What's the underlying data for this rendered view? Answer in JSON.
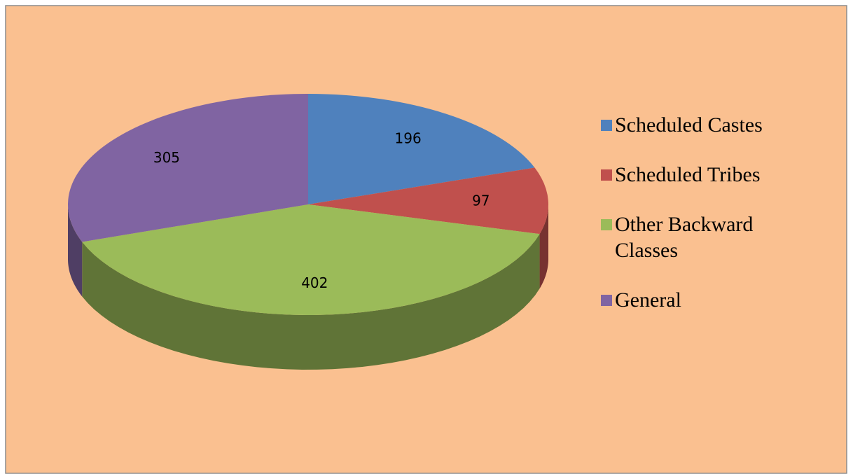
{
  "chart_data": {
    "type": "pie",
    "categories": [
      "Scheduled Castes",
      "Scheduled Tribes",
      "Other Backward Classes",
      "General"
    ],
    "values": [
      196,
      97,
      402,
      305
    ],
    "colors": [
      "#4f81bd",
      "#c0504d",
      "#9bbb59",
      "#8064a2"
    ],
    "legend": "right"
  }
}
